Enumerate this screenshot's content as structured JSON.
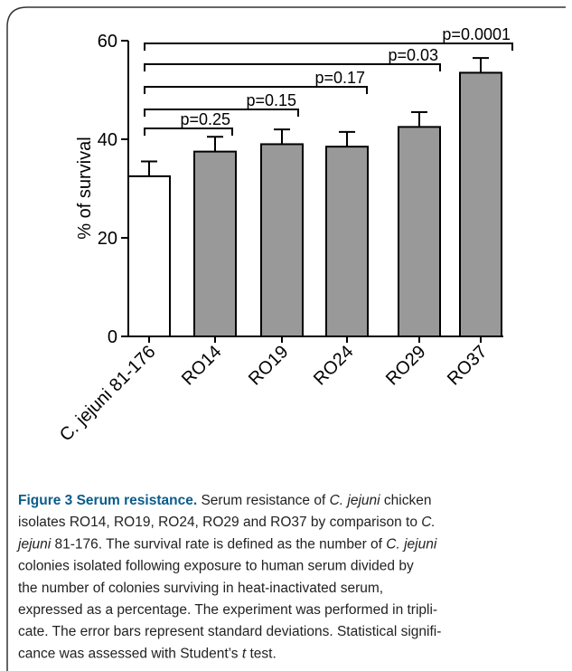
{
  "chart_data": {
    "type": "bar",
    "ylabel": "% of survival",
    "categories": [
      "C. jejuni 81-176",
      "RO14",
      "RO19",
      "RO24",
      "RO29",
      "RO37"
    ],
    "values": [
      32.5,
      37.5,
      39,
      38.5,
      42.5,
      53.5
    ],
    "errors": [
      3,
      3,
      3,
      3,
      3,
      3
    ],
    "colors": [
      "#ffffff",
      "#999999",
      "#999999",
      "#999999",
      "#999999",
      "#999999"
    ],
    "ylim": [
      0,
      60
    ],
    "yticks": [
      0,
      20,
      40,
      60
    ],
    "annotations": [
      "p=0.25",
      "p=0.15",
      "p=0.17",
      "p=0.03",
      "p=0.0001"
    ]
  },
  "caption": {
    "lines": [
      [
        {
          "text": "Figure 3 Serum resistance.",
          "b": true
        },
        {
          "text": " Serum resistance of "
        },
        {
          "text": "C. jejuni",
          "i": true
        },
        {
          "text": " chicken"
        }
      ],
      [
        {
          "text": "isolates RO14, RO19, RO24, RO29 and RO37 by comparison to "
        },
        {
          "text": "C.",
          "i": true
        }
      ],
      [
        {
          "text": "jejuni",
          "i": true
        },
        {
          "text": " 81-176. The survival rate is defined as the number of "
        },
        {
          "text": "C. jejuni",
          "i": true
        }
      ],
      [
        {
          "text": "colonies isolated following exposure to human serum divided by"
        }
      ],
      [
        {
          "text": "the number of colonies surviving in heat-inactivated serum,"
        }
      ],
      [
        {
          "text": "expressed as a percentage. The experiment was performed in tripli-"
        }
      ],
      [
        {
          "text": "cate. The error bars represent standard deviations. Statistical signifi-"
        }
      ],
      [
        {
          "text": "cance was assessed with Student’s "
        },
        {
          "text": "t",
          "i": true
        },
        {
          "text": " test."
        }
      ]
    ]
  }
}
